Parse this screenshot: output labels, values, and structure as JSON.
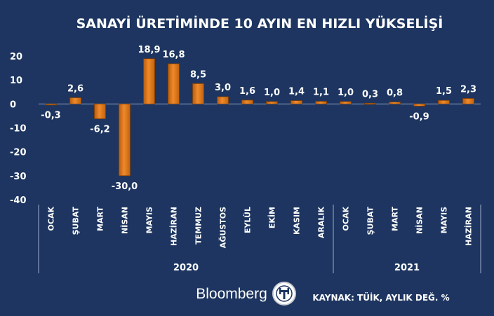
{
  "chart_data": {
    "type": "bar",
    "title": "SANAYİ ÜRETİMİNDE 10 AYIN EN HIZLI YÜKSELİŞİ",
    "categories": [
      "OCAK",
      "ŞUBAT",
      "MART",
      "NİSAN",
      "MAYIS",
      "HAZİRAN",
      "TEMMUZ",
      "AĞUSTOS",
      "EYLÜL",
      "EKİM",
      "KASIM",
      "ARALIK",
      "OCAK",
      "ŞUBAT",
      "MART",
      "NİSAN",
      "MAYIS",
      "HAZİRAN"
    ],
    "values": [
      -0.3,
      2.6,
      -6.2,
      -30.0,
      18.9,
      16.8,
      8.5,
      3.0,
      1.6,
      1.0,
      1.4,
      1.1,
      1.0,
      0.3,
      0.8,
      -0.9,
      1.5,
      2.3
    ],
    "value_labels": [
      "-0,3",
      "2,6",
      "-6,2",
      "-30,0",
      "18,9",
      "16,8",
      "8,5",
      "3,0",
      "1,6",
      "1,0",
      "1,4",
      "1,1",
      "1,0",
      "0,3",
      "0,8",
      "-0,9",
      "1,5",
      "2,3"
    ],
    "groups": [
      {
        "label": "2020",
        "start": 0,
        "end": 11
      },
      {
        "label": "2021",
        "start": 12,
        "end": 17
      }
    ],
    "ylim": [
      -40,
      20
    ],
    "yticks": [
      20,
      10,
      0,
      -10,
      -20,
      -30,
      -40
    ],
    "ytick_labels": [
      "20",
      "10",
      "0",
      "-10",
      "-20",
      "-30",
      "-40"
    ],
    "xlabel": "",
    "ylabel": "",
    "grid": false,
    "colors": {
      "bar": "#e07a1c",
      "bar_dark": "#a8520e",
      "background": "#1d3560",
      "text": "#ffffff"
    }
  },
  "footer": {
    "brand": "Bloomberg",
    "logo_letters": "HT",
    "source": "KAYNAK: TÜİK, AYLIK DEĞ. %"
  }
}
